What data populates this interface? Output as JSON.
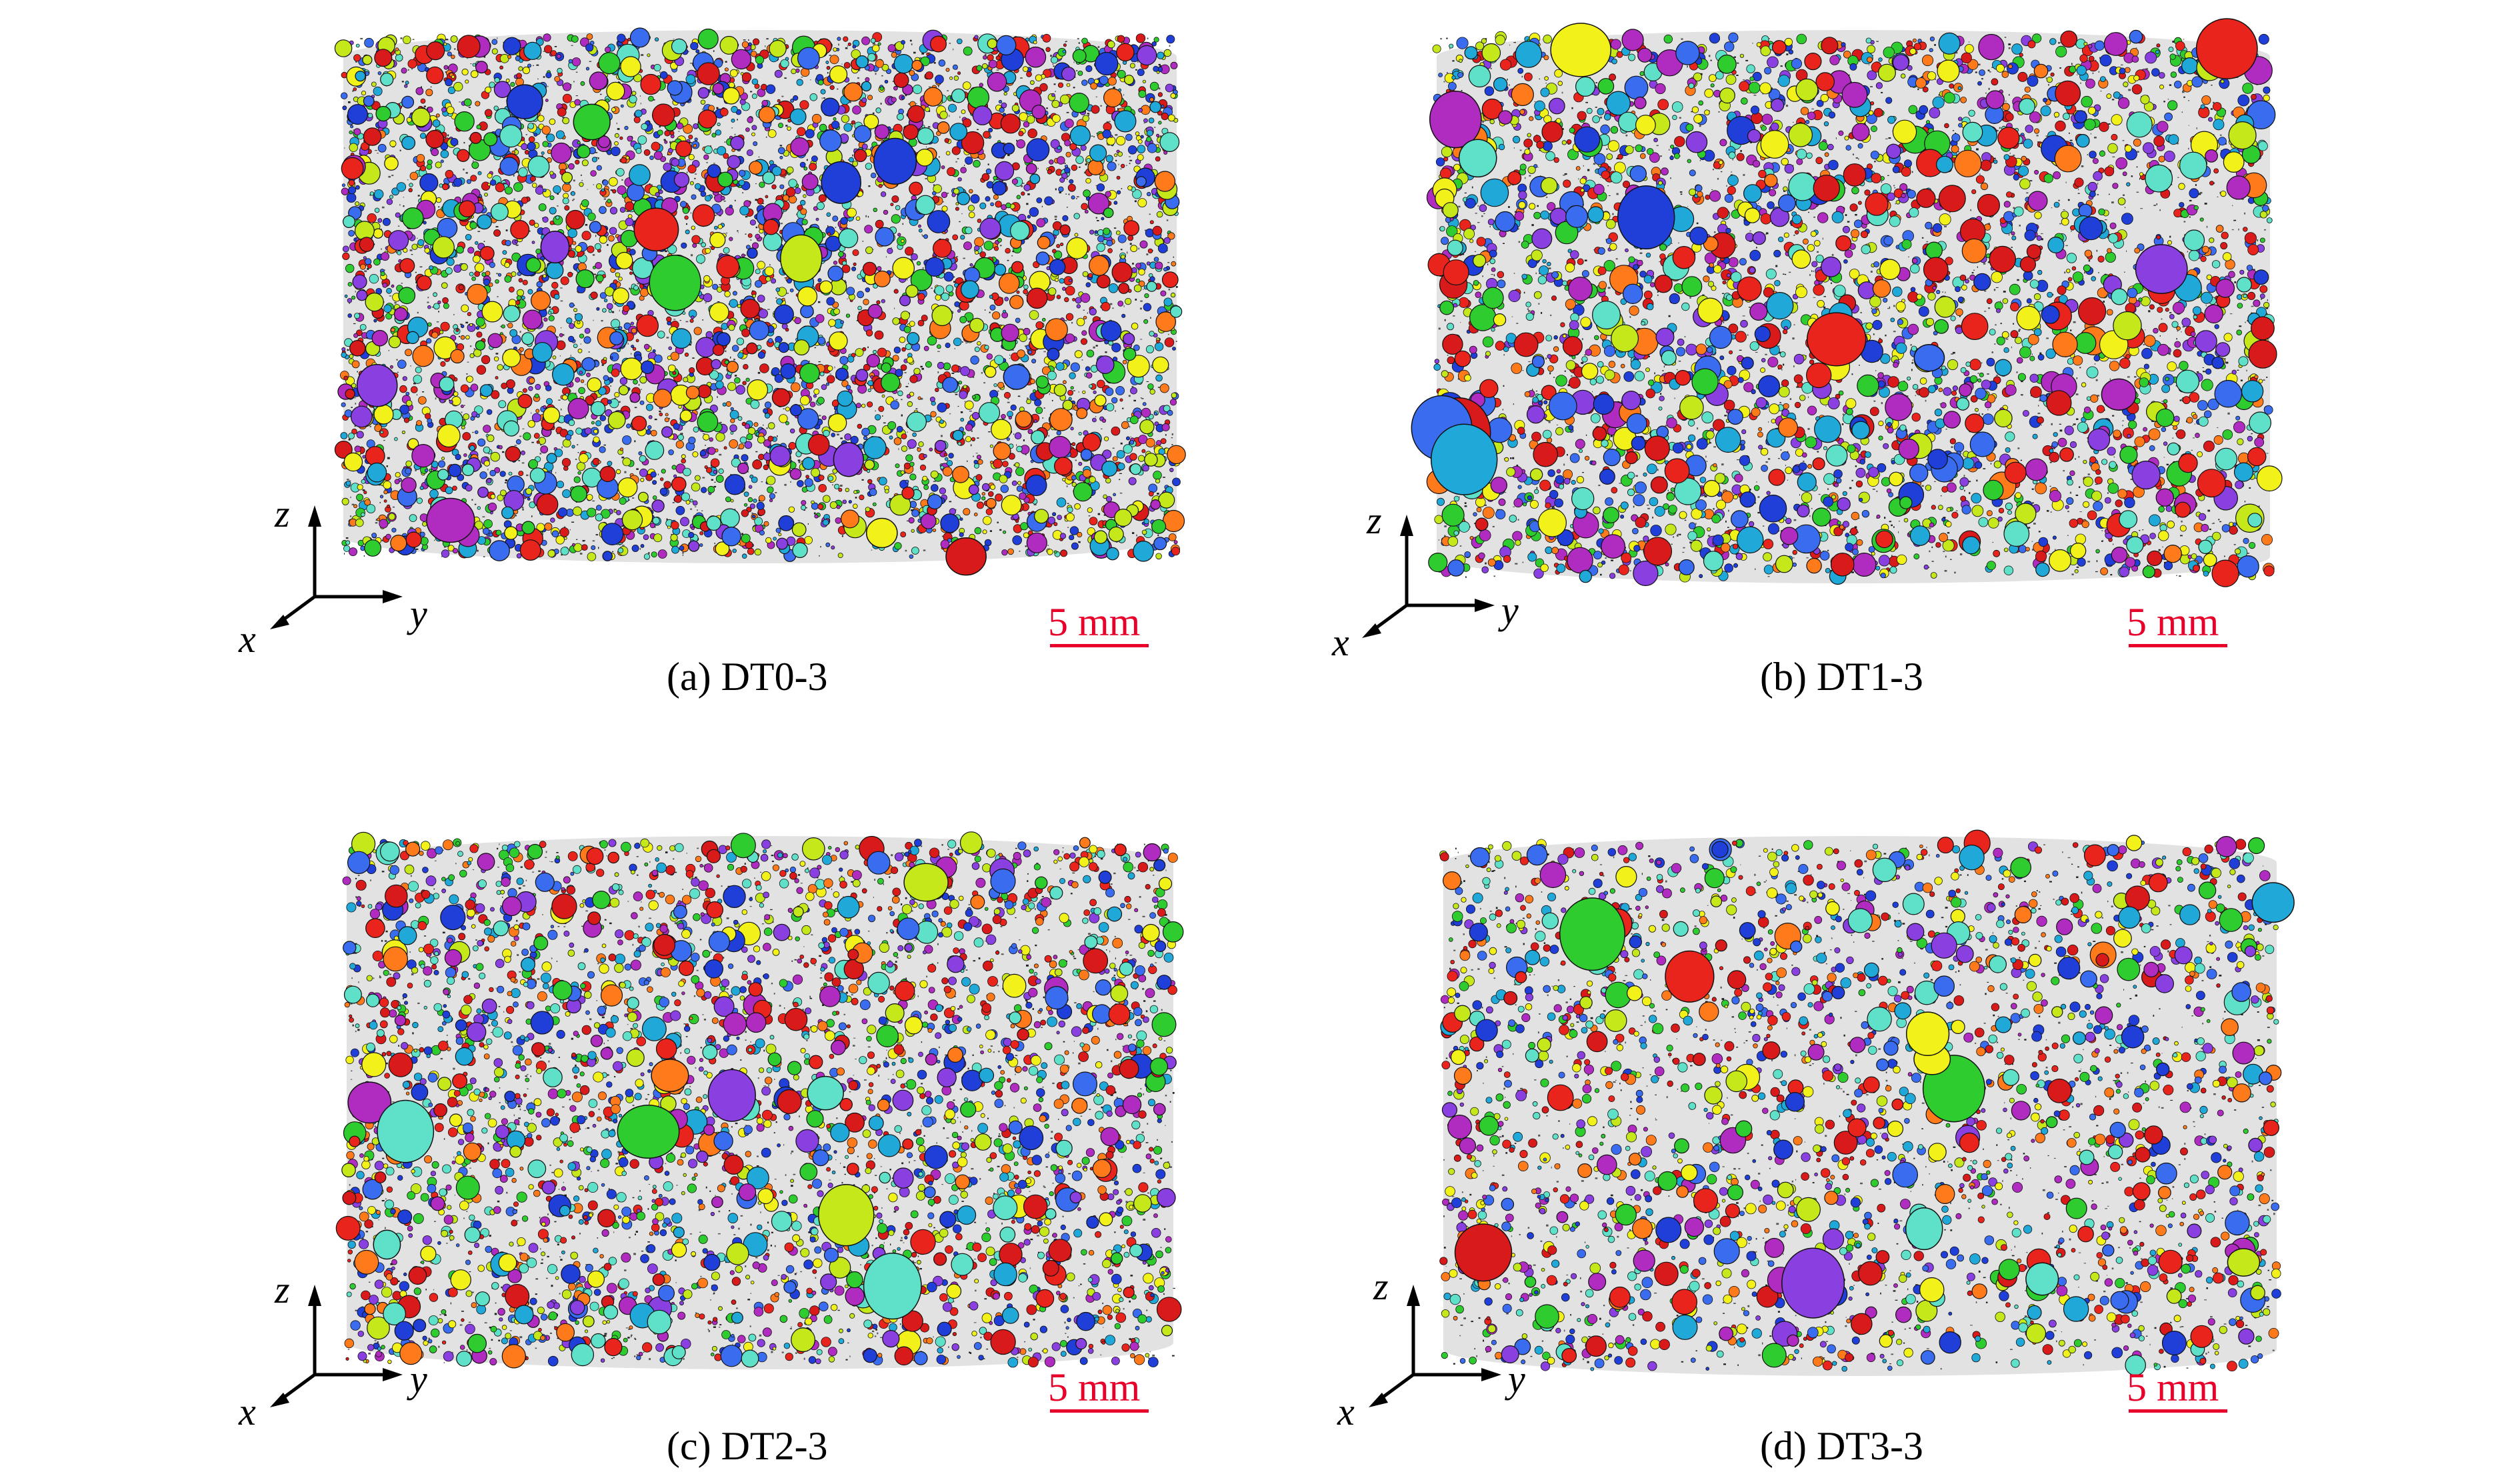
{
  "figure": {
    "panels": [
      {
        "id": "a",
        "caption": "(a) DT0-3",
        "scale_bar": "5 mm",
        "axes": {
          "x": "x",
          "y": "y",
          "z": "z"
        },
        "pore_density": "very high",
        "background_color": "#d8d8d8"
      },
      {
        "id": "b",
        "caption": "(b) DT1-3",
        "scale_bar": "5 mm",
        "axes": {
          "x": "x",
          "y": "y",
          "z": "z"
        },
        "pore_density": "high",
        "background_color": "#d8d8d8"
      },
      {
        "id": "c",
        "caption": "(c) DT2-3",
        "scale_bar": "5 mm",
        "axes": {
          "x": "x",
          "y": "y",
          "z": "z"
        },
        "pore_density": "medium",
        "background_color": "#d8d8d8"
      },
      {
        "id": "d",
        "caption": "(d) DT3-3",
        "scale_bar": "5 mm",
        "axes": {
          "x": "x",
          "y": "y",
          "z": "z"
        },
        "pore_density": "medium-low",
        "background_color": "#d8d8d8"
      }
    ],
    "pore_colors": [
      "#e8241c",
      "#1f3fd8",
      "#2ecc2e",
      "#f2f21a",
      "#8a3fe0",
      "#5fe0c8",
      "#ff7a1a",
      "#c4e81a",
      "#3a6cf0",
      "#d81a1a",
      "#20a8d8",
      "#b02cc0"
    ],
    "scale_bar_color": "#e8002a"
  }
}
